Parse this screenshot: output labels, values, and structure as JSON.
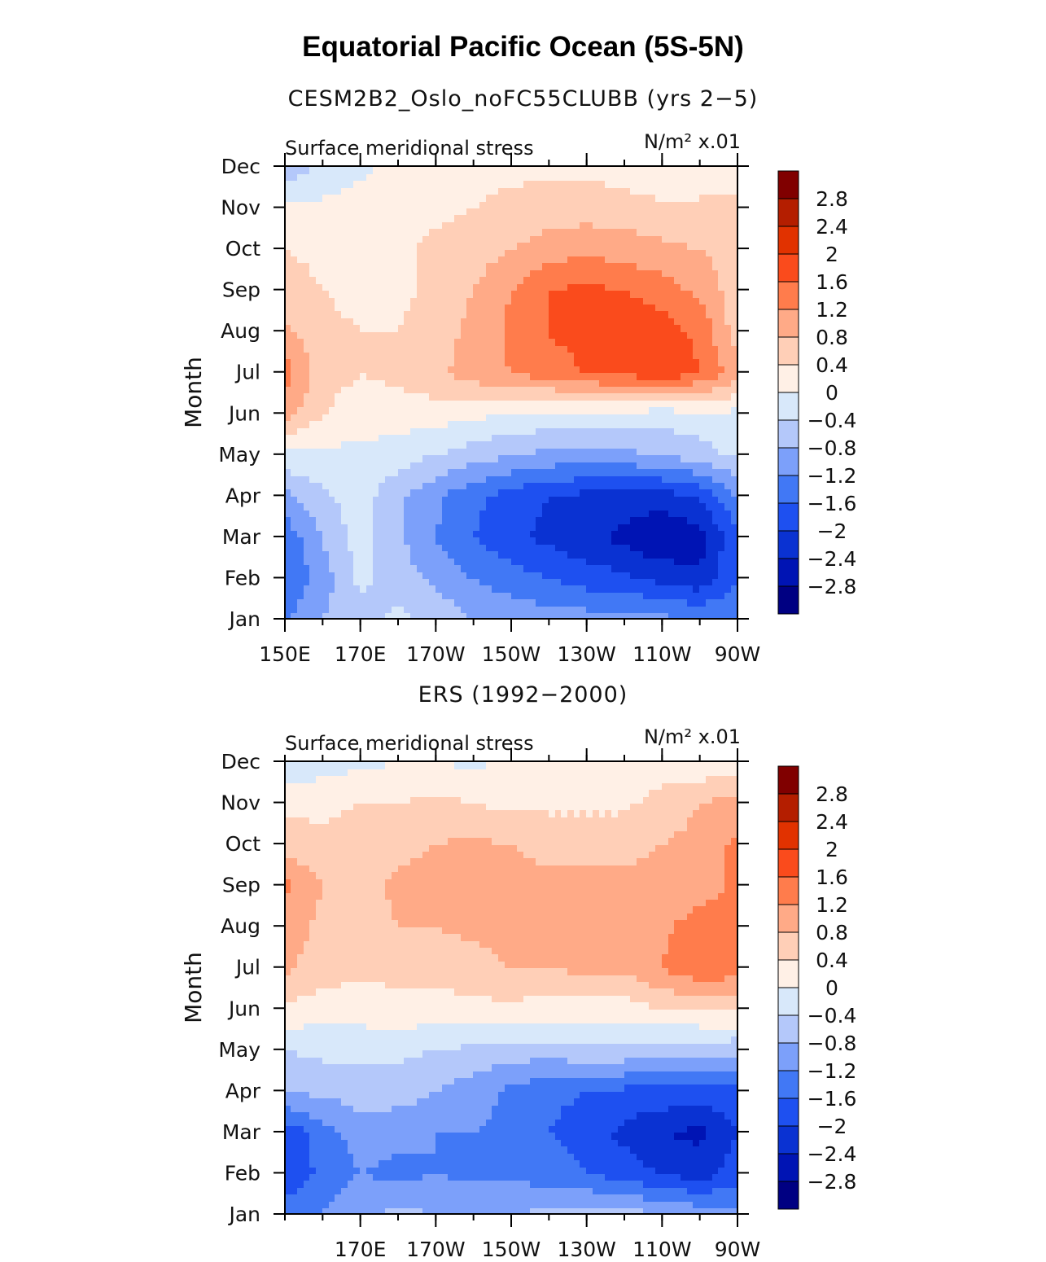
{
  "page": {
    "title": "Equatorial Pacific Ocean (5S-5N)"
  },
  "colorbar": {
    "colors": [
      "#000082",
      "#0014b4",
      "#0a32d2",
      "#1e50f0",
      "#4178f5",
      "#7ca0fa",
      "#b4c8fa",
      "#d8e8fa",
      "#fff0e6",
      "#ffcfb7",
      "#ffaa87",
      "#ff7c4c",
      "#fa4b1c",
      "#e13200",
      "#b41e00",
      "#800000"
    ],
    "levels": [
      -2.8,
      -2.4,
      -2,
      -1.6,
      -1.2,
      -0.8,
      -0.4,
      0,
      0.4,
      0.8,
      1.2,
      1.6,
      2,
      2.4,
      2.8
    ],
    "labels": [
      "−2.8",
      "−2.4",
      "−2",
      "−1.6",
      "−1.2",
      "−0.8",
      "−0.4",
      "0",
      "0.4",
      "0.8",
      "1.2",
      "1.6",
      "2",
      "2.4",
      "2.8"
    ]
  },
  "chart_data": [
    {
      "type": "heatmap",
      "title": "CESM2B2_Oslo_noFC55CLUBB (yrs 2−5)",
      "left_label": "Surface meridional stress",
      "units_label": "N/m² x.01",
      "ylabel": "Month",
      "y_categories": [
        "Jan",
        "Feb",
        "Mar",
        "Apr",
        "May",
        "Jun",
        "Jul",
        "Aug",
        "Sep",
        "Oct",
        "Nov",
        "Dec"
      ],
      "x_ticks": [
        150,
        170,
        190,
        210,
        230,
        250,
        270
      ],
      "x_tick_labels": [
        "150E",
        "170E",
        "170W",
        "150W",
        "130W",
        "110W",
        "90W"
      ],
      "xlim": [
        150,
        270
      ],
      "ylim": [
        1,
        12
      ],
      "x": [
        150,
        160,
        170,
        180,
        190,
        200,
        210,
        220,
        230,
        240,
        250,
        260,
        270
      ],
      "y": [
        1,
        2,
        3,
        4,
        5,
        6,
        7,
        8,
        9,
        10,
        11,
        12
      ],
      "z": [
        [
          -1.3,
          -0.8,
          -0.6,
          -0.3,
          -0.5,
          -0.8,
          -0.9,
          -1.0,
          -1.0,
          -1.0,
          -1.1,
          -1.2,
          -1.2
        ],
        [
          -1.6,
          -1.0,
          -0.3,
          -0.6,
          -0.9,
          -1.2,
          -1.4,
          -1.6,
          -1.8,
          -1.9,
          -2.1,
          -2.3,
          -1.6
        ],
        [
          -1.5,
          -0.8,
          -0.2,
          -0.7,
          -1.2,
          -1.6,
          -1.9,
          -2.1,
          -2.3,
          -2.5,
          -2.8,
          -2.6,
          -1.7
        ],
        [
          -0.9,
          -0.5,
          -0.2,
          -0.7,
          -1.1,
          -1.5,
          -1.8,
          -2.0,
          -2.1,
          -2.2,
          -2.2,
          -2.0,
          -1.2
        ],
        [
          -0.1,
          -0.1,
          -0.1,
          -0.2,
          -0.4,
          -0.6,
          -0.8,
          -0.9,
          -1.0,
          -0.9,
          -0.8,
          -0.6,
          -0.3
        ],
        [
          1.0,
          0.4,
          0.2,
          0.2,
          0.2,
          0.1,
          0.0,
          -0.1,
          -0.1,
          -0.1,
          -0.2,
          -0.1,
          -0.1
        ],
        [
          1.4,
          0.6,
          0.4,
          0.5,
          0.7,
          1.0,
          1.2,
          1.4,
          1.6,
          1.7,
          1.9,
          1.6,
          1.0
        ],
        [
          0.9,
          0.5,
          0.4,
          0.4,
          0.6,
          0.9,
          1.3,
          1.6,
          1.8,
          1.9,
          1.8,
          1.5,
          0.6
        ],
        [
          0.6,
          0.4,
          0.3,
          0.3,
          0.5,
          0.8,
          1.2,
          1.6,
          1.7,
          1.6,
          1.4,
          1.1,
          0.6
        ],
        [
          0.4,
          0.3,
          0.1,
          0.3,
          0.5,
          0.6,
          0.8,
          1.0,
          1.1,
          1.0,
          0.9,
          0.8,
          0.6
        ],
        [
          0.1,
          0.1,
          0.2,
          0.3,
          0.3,
          0.4,
          0.5,
          0.6,
          0.6,
          0.6,
          0.5,
          0.5,
          0.5
        ],
        [
          -0.7,
          -0.3,
          -0.1,
          0.1,
          0.2,
          0.3,
          0.3,
          0.3,
          0.3,
          0.2,
          0.0,
          0.1,
          0.2
        ]
      ]
    },
    {
      "type": "heatmap",
      "title": "ERS (1992−2000)",
      "left_label": "Surface meridional stress",
      "units_label": "N/m² x.01",
      "ylabel": "Month",
      "y_categories": [
        "Jan",
        "Feb",
        "Mar",
        "Apr",
        "May",
        "Jun",
        "Jul",
        "Aug",
        "Sep",
        "Oct",
        "Nov",
        "Dec"
      ],
      "x_ticks": [
        170,
        190,
        210,
        230,
        250,
        270
      ],
      "x_tick_labels": [
        "170E",
        "170W",
        "150W",
        "130W",
        "110W",
        "90W"
      ],
      "xlim": [
        150,
        270
      ],
      "ylim": [
        1,
        12
      ],
      "x": [
        150,
        160,
        170,
        180,
        190,
        200,
        210,
        220,
        230,
        240,
        250,
        260,
        270
      ],
      "y": [
        1,
        2,
        3,
        4,
        5,
        6,
        7,
        8,
        9,
        10,
        11,
        12
      ],
      "z": [
        [
          -1.3,
          -1.2,
          -0.9,
          -0.7,
          -0.8,
          -0.8,
          -0.8,
          -0.7,
          -0.6,
          -0.6,
          -0.8,
          -0.9,
          -1.0
        ],
        [
          -2.0,
          -1.5,
          -1.2,
          -1.3,
          -1.2,
          -1.3,
          -1.3,
          -1.4,
          -1.6,
          -1.8,
          -2.0,
          -2.2,
          -1.8
        ],
        [
          -1.9,
          -1.4,
          -1.0,
          -1.1,
          -1.2,
          -1.2,
          -1.3,
          -1.6,
          -1.8,
          -2.1,
          -2.4,
          -2.5,
          -2.0
        ],
        [
          -0.8,
          -0.7,
          -0.6,
          -0.6,
          -0.8,
          -1.0,
          -1.3,
          -1.5,
          -1.6,
          -1.7,
          -1.7,
          -1.8,
          -1.7
        ],
        [
          -0.4,
          -0.3,
          -0.3,
          -0.3,
          -0.4,
          -0.5,
          -0.6,
          -0.6,
          -0.5,
          -0.5,
          -0.6,
          -0.7,
          -0.7
        ],
        [
          0.3,
          0.2,
          0.2,
          0.3,
          0.2,
          0.3,
          0.3,
          0.2,
          0.2,
          0.2,
          0.4,
          0.5,
          0.5
        ],
        [
          0.9,
          0.6,
          0.5,
          0.5,
          0.6,
          0.6,
          0.8,
          0.8,
          0.9,
          0.9,
          1.2,
          1.5,
          1.4
        ],
        [
          1.0,
          0.7,
          0.6,
          0.8,
          0.8,
          0.9,
          1.0,
          1.0,
          0.9,
          0.9,
          1.1,
          1.4,
          1.4
        ],
        [
          1.3,
          0.8,
          0.6,
          0.9,
          0.9,
          0.8,
          0.9,
          0.9,
          0.9,
          0.9,
          0.9,
          1.0,
          1.3
        ],
        [
          0.6,
          0.5,
          0.6,
          0.7,
          0.8,
          0.9,
          0.8,
          0.7,
          0.7,
          0.7,
          0.8,
          0.9,
          1.3
        ],
        [
          0.3,
          0.3,
          0.4,
          0.4,
          0.5,
          0.4,
          0.3,
          0.3,
          0.3,
          0.3,
          0.6,
          0.8,
          1.0
        ],
        [
          -0.3,
          -0.2,
          -0.1,
          0.0,
          0.0,
          -0.1,
          0.1,
          0.0,
          0.1,
          0.1,
          0.1,
          0.1,
          0.1
        ]
      ]
    }
  ]
}
